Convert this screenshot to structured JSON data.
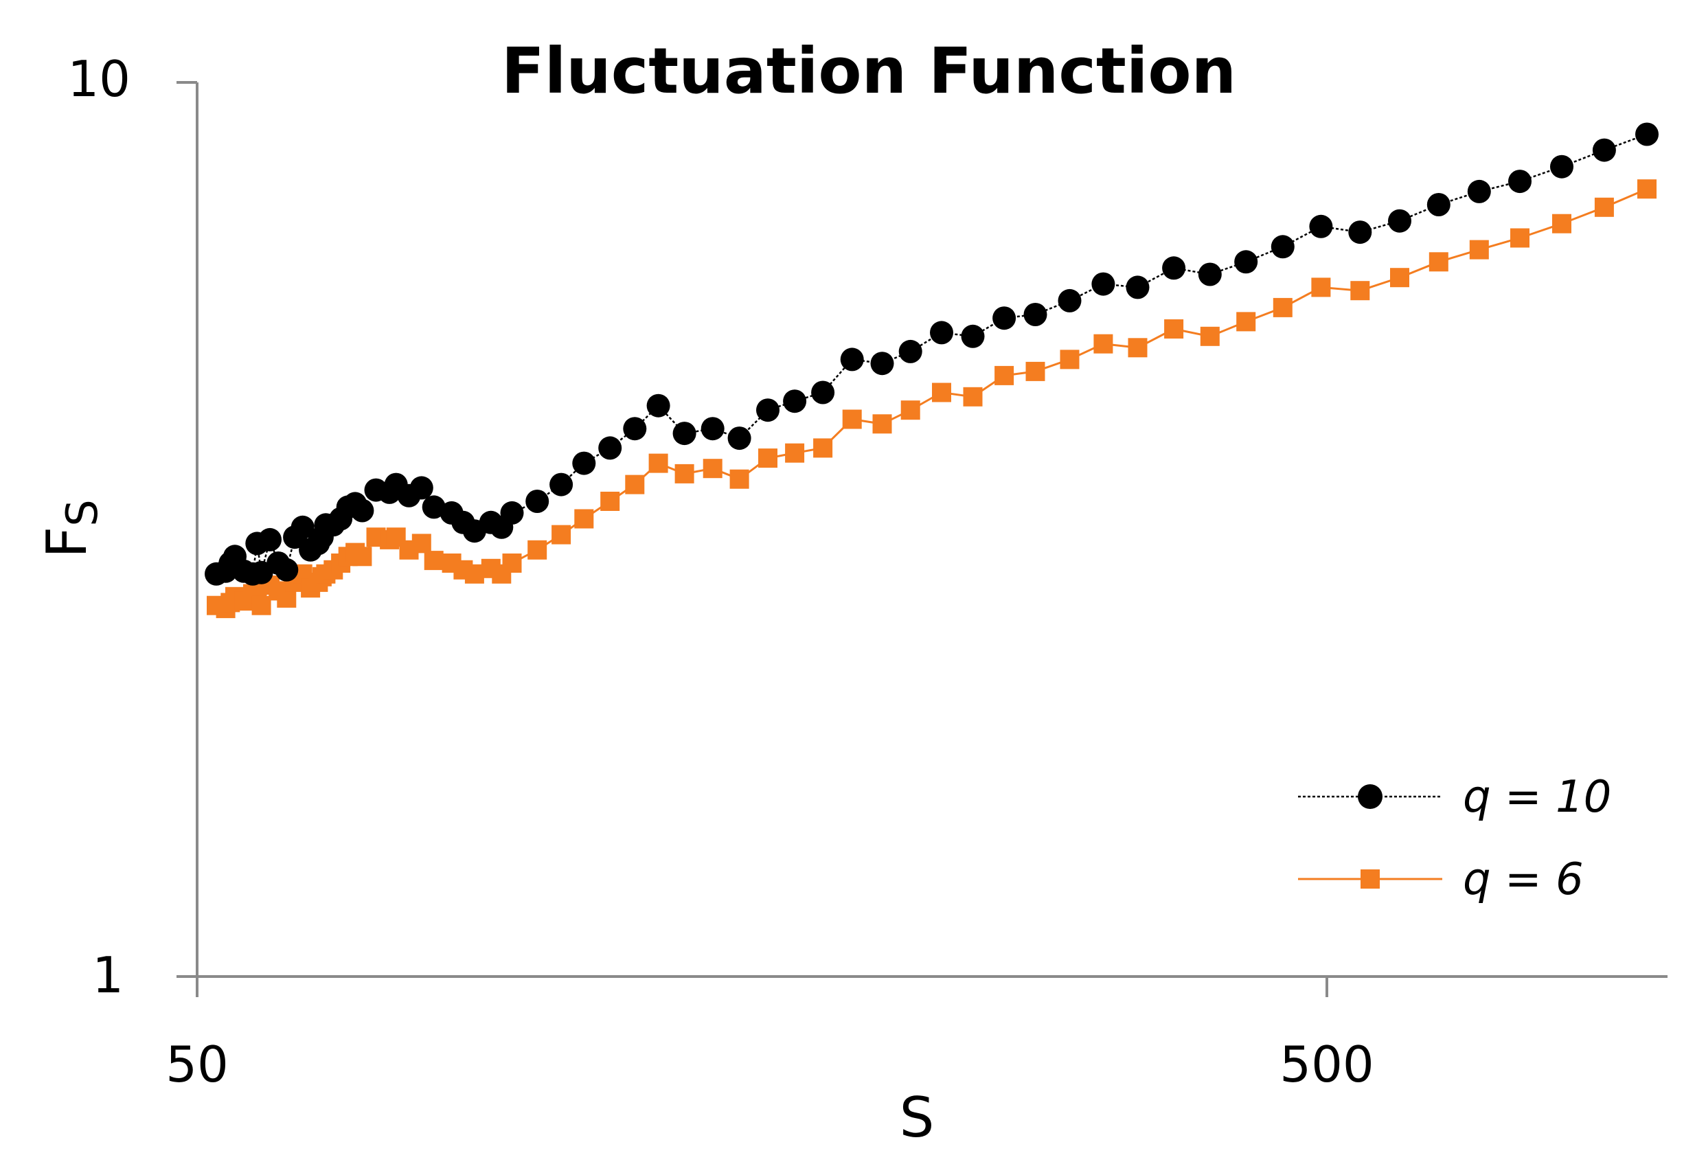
{
  "chart_data": {
    "type": "line",
    "title": "Fluctuation Function",
    "xlabel": "S",
    "ylabel": "F",
    "ylabel_sub": "S",
    "x_scale": "log",
    "y_scale": "log",
    "xlim": [
      50,
      1000
    ],
    "ylim": [
      1,
      10
    ],
    "x_ticks": [
      50,
      500
    ],
    "x_tick_labels": [
      "50",
      "500"
    ],
    "y_ticks": [
      1,
      10
    ],
    "y_tick_labels": [
      "1",
      "10"
    ],
    "grid": false,
    "legend_position": "bottom-right",
    "series": [
      {
        "name": "q = 10",
        "color": "#000000",
        "line_style": "dotted",
        "marker": "circle",
        "x": [
          52,
          53,
          53.5,
          54,
          55,
          56,
          56.5,
          57,
          58,
          59,
          60,
          61,
          62,
          63,
          64,
          64.5,
          65,
          66,
          67,
          68,
          69,
          70,
          72,
          74,
          75,
          77,
          79,
          81,
          84,
          86,
          88,
          91,
          93,
          95,
          100,
          105,
          110,
          116,
          122,
          128,
          135,
          143,
          151,
          160,
          169,
          179,
          190,
          202,
          214,
          228,
          243,
          259,
          276,
          296,
          317,
          340,
          366,
          394,
          424,
          457,
          494,
          535,
          580,
          628,
          682,
          741,
          807,
          880,
          960
        ],
        "y": [
          2.82,
          2.84,
          2.9,
          2.95,
          2.84,
          2.82,
          3.05,
          2.83,
          3.08,
          2.9,
          2.85,
          3.1,
          3.18,
          3.0,
          3.05,
          3.1,
          3.2,
          3.2,
          3.25,
          3.35,
          3.38,
          3.32,
          3.5,
          3.48,
          3.55,
          3.45,
          3.52,
          3.35,
          3.3,
          3.22,
          3.15,
          3.22,
          3.18,
          3.3,
          3.4,
          3.55,
          3.75,
          3.9,
          4.1,
          4.35,
          4.05,
          4.1,
          4.0,
          4.3,
          4.4,
          4.5,
          4.9,
          4.85,
          5.0,
          5.25,
          5.2,
          5.45,
          5.5,
          5.7,
          5.95,
          5.9,
          6.2,
          6.1,
          6.3,
          6.55,
          6.9,
          6.8,
          7.0,
          7.3,
          7.55,
          7.75,
          8.05,
          8.4,
          8.75
        ]
      },
      {
        "name": "q = 6",
        "color": "#F47D20",
        "line_style": "solid",
        "marker": "square",
        "x": [
          52,
          53,
          53.5,
          54,
          55,
          56,
          56.5,
          57,
          58,
          59,
          60,
          61,
          62,
          63,
          64,
          64.5,
          65,
          66,
          67,
          68,
          69,
          70,
          72,
          74,
          75,
          77,
          79,
          81,
          84,
          86,
          88,
          91,
          93,
          95,
          100,
          105,
          110,
          116,
          122,
          128,
          135,
          143,
          151,
          160,
          169,
          179,
          190,
          202,
          214,
          228,
          243,
          259,
          276,
          296,
          317,
          340,
          366,
          394,
          424,
          457,
          494,
          535,
          580,
          628,
          682,
          741,
          807,
          880,
          960
        ],
        "y": [
          2.6,
          2.58,
          2.62,
          2.66,
          2.63,
          2.68,
          2.72,
          2.6,
          2.74,
          2.7,
          2.65,
          2.76,
          2.82,
          2.72,
          2.76,
          2.8,
          2.82,
          2.85,
          2.9,
          2.95,
          2.98,
          2.95,
          3.1,
          3.08,
          3.1,
          3.0,
          3.05,
          2.92,
          2.9,
          2.85,
          2.82,
          2.86,
          2.82,
          2.9,
          3.0,
          3.12,
          3.25,
          3.4,
          3.55,
          3.75,
          3.65,
          3.7,
          3.6,
          3.8,
          3.85,
          3.9,
          4.2,
          4.15,
          4.3,
          4.5,
          4.45,
          4.7,
          4.75,
          4.9,
          5.1,
          5.05,
          5.3,
          5.2,
          5.4,
          5.6,
          5.9,
          5.85,
          6.05,
          6.3,
          6.5,
          6.7,
          6.95,
          7.25,
          7.6
        ]
      }
    ]
  }
}
